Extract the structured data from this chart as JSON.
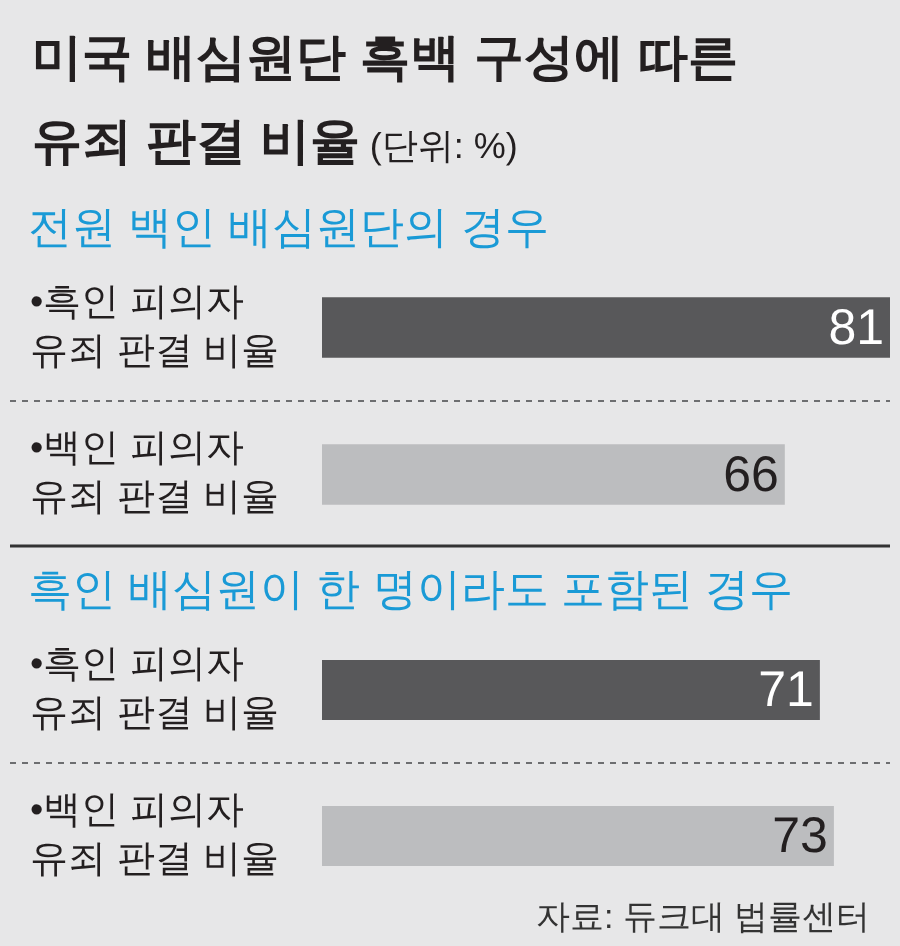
{
  "chart_data": [
    {
      "type": "other",
      "title": "미국 배심원단 흑백 구성에 따른\n유죄 판결 비율 (단위: %)"
    },
    {
      "type": "bar",
      "orientation": "horizontal",
      "title": "전원 백인 배심원단의 경우",
      "categories": [
        "•흑인 피의자\n유죄 판결 비율",
        "•백인 피의자\n유죄 판결 비율"
      ],
      "values": [
        81,
        66
      ],
      "colors": [
        "#58585a",
        "#bcbdbf"
      ],
      "xlim": [
        0,
        81
      ],
      "data_labels": true,
      "tick_labels": "y"
    },
    {
      "type": "bar",
      "orientation": "horizontal",
      "title": "흑인 배심원이 한 명이라도 포함된 경우",
      "categories": [
        "•흑인 피의자\n유죄 판결 비율",
        "•백인 피의자\n유죄 판결 비율"
      ],
      "values": [
        71,
        73
      ],
      "colors": [
        "#58585a",
        "#bcbdbf"
      ],
      "xlim": [
        0,
        81
      ],
      "data_labels": true,
      "tick_labels": "y",
      "annotations": [
        "자료: 듀크대 법률센터"
      ]
    }
  ]
}
